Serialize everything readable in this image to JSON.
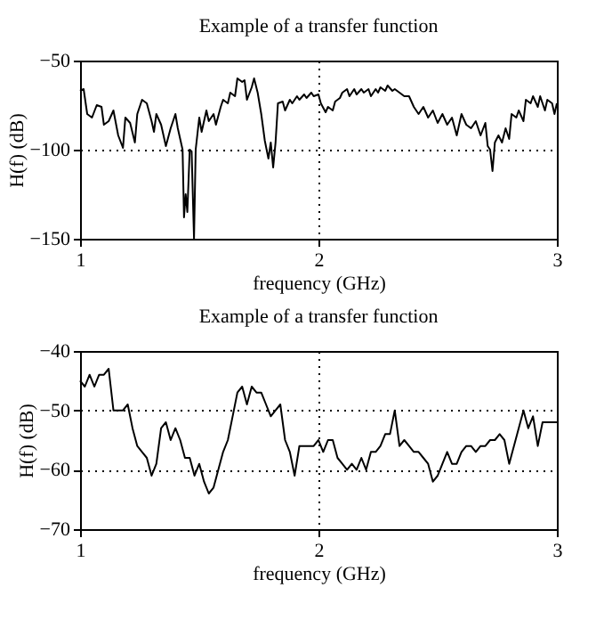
{
  "chart_data": [
    {
      "type": "line",
      "title": "Example of a transfer function",
      "xlabel": "frequency (GHz)",
      "ylabel": "H(f) (dB)",
      "color": "#000000",
      "xlim": [
        1,
        3
      ],
      "xticks": [
        1,
        2,
        3
      ],
      "ylim": [
        -150,
        -50
      ],
      "yticks": [
        -150,
        -100,
        -50
      ],
      "grid": true,
      "line_style": "solid",
      "marker": "none",
      "x": [
        1.0,
        1.015,
        1.03,
        1.05,
        1.07,
        1.09,
        1.1,
        1.12,
        1.14,
        1.16,
        1.18,
        1.19,
        1.21,
        1.23,
        1.24,
        1.26,
        1.28,
        1.3,
        1.31,
        1.32,
        1.34,
        1.36,
        1.38,
        1.4,
        1.41,
        1.43,
        1.436,
        1.443,
        1.45,
        1.46,
        1.468,
        1.478,
        1.485,
        1.5,
        1.51,
        1.53,
        1.54,
        1.56,
        1.57,
        1.59,
        1.6,
        1.62,
        1.63,
        1.65,
        1.66,
        1.68,
        1.69,
        1.7,
        1.72,
        1.73,
        1.745,
        1.76,
        1.775,
        1.79,
        1.8,
        1.81,
        1.82,
        1.83,
        1.85,
        1.86,
        1.88,
        1.89,
        1.91,
        1.92,
        1.94,
        1.95,
        1.97,
        1.98,
        2.0,
        2.01,
        2.03,
        2.04,
        2.06,
        2.07,
        2.09,
        2.1,
        2.12,
        2.13,
        2.15,
        2.16,
        2.18,
        2.19,
        2.21,
        2.22,
        2.24,
        2.25,
        2.26,
        2.28,
        2.29,
        2.31,
        2.32,
        2.34,
        2.36,
        2.38,
        2.4,
        2.42,
        2.44,
        2.46,
        2.48,
        2.5,
        2.52,
        2.54,
        2.56,
        2.58,
        2.6,
        2.62,
        2.64,
        2.66,
        2.68,
        2.7,
        2.71,
        2.72,
        2.73,
        2.74,
        2.755,
        2.77,
        2.785,
        2.8,
        2.81,
        2.83,
        2.84,
        2.86,
        2.87,
        2.89,
        2.9,
        2.92,
        2.93,
        2.95,
        2.96,
        2.98,
        2.99,
        3.0
      ],
      "values": [
        -67,
        -66,
        -80,
        -82,
        -75,
        -76,
        -86,
        -84,
        -78,
        -92,
        -99,
        -82,
        -85,
        -96,
        -80,
        -72,
        -74,
        -84,
        -90,
        -80,
        -86,
        -98,
        -88,
        -80,
        -88,
        -100,
        -138,
        -125,
        -135,
        -100,
        -101,
        -150,
        -100,
        -82,
        -90,
        -78,
        -84,
        -80,
        -86,
        -76,
        -72,
        -74,
        -68,
        -70,
        -60,
        -62,
        -61,
        -72,
        -65,
        -60,
        -68,
        -80,
        -95,
        -105,
        -96,
        -110,
        -96,
        -74,
        -73,
        -78,
        -72,
        -74,
        -70,
        -72,
        -69,
        -71,
        -68,
        -70,
        -69,
        -74,
        -79,
        -76,
        -78,
        -73,
        -71,
        -68,
        -66,
        -70,
        -66,
        -69,
        -66,
        -68,
        -66,
        -70,
        -66,
        -68,
        -65,
        -67,
        -64,
        -67,
        -66,
        -68,
        -70,
        -70,
        -76,
        -80,
        -76,
        -82,
        -78,
        -85,
        -80,
        -86,
        -82,
        -92,
        -80,
        -86,
        -88,
        -84,
        -92,
        -85,
        -98,
        -100,
        -112,
        -96,
        -92,
        -96,
        -88,
        -94,
        -80,
        -82,
        -78,
        -84,
        -72,
        -74,
        -70,
        -76,
        -70,
        -78,
        -72,
        -74,
        -80,
        -74
      ]
    },
    {
      "type": "line",
      "title": "Example of a transfer function",
      "xlabel": "frequency (GHz)",
      "ylabel": "H(f) (dB)",
      "color": "#000000",
      "xlim": [
        1,
        3
      ],
      "xticks": [
        1,
        2,
        3
      ],
      "ylim": [
        -70,
        -40
      ],
      "yticks": [
        -70,
        -60,
        -50,
        -40
      ],
      "grid": true,
      "line_style": "solid",
      "marker": "none",
      "x": [
        1.0,
        1.02,
        1.04,
        1.06,
        1.08,
        1.1,
        1.12,
        1.14,
        1.16,
        1.18,
        1.2,
        1.22,
        1.24,
        1.26,
        1.28,
        1.3,
        1.32,
        1.34,
        1.36,
        1.38,
        1.4,
        1.42,
        1.44,
        1.46,
        1.48,
        1.5,
        1.52,
        1.54,
        1.56,
        1.58,
        1.6,
        1.62,
        1.64,
        1.66,
        1.68,
        1.7,
        1.72,
        1.74,
        1.76,
        1.78,
        1.8,
        1.82,
        1.84,
        1.86,
        1.88,
        1.9,
        1.92,
        1.94,
        1.96,
        1.98,
        2.0,
        2.02,
        2.04,
        2.06,
        2.08,
        2.1,
        2.12,
        2.14,
        2.16,
        2.18,
        2.2,
        2.22,
        2.24,
        2.26,
        2.28,
        2.3,
        2.32,
        2.34,
        2.36,
        2.38,
        2.4,
        2.42,
        2.44,
        2.46,
        2.48,
        2.5,
        2.52,
        2.54,
        2.56,
        2.58,
        2.6,
        2.62,
        2.64,
        2.66,
        2.68,
        2.7,
        2.72,
        2.74,
        2.76,
        2.78,
        2.8,
        2.82,
        2.84,
        2.86,
        2.88,
        2.9,
        2.92,
        2.94,
        2.96,
        2.98,
        3.0
      ],
      "values": [
        -45,
        -46,
        -44,
        -46,
        -44,
        -44,
        -43,
        -50,
        -50,
        -50,
        -49,
        -53,
        -56,
        -57,
        -58,
        -61,
        -59,
        -53,
        -52,
        -55,
        -53,
        -55,
        -58,
        -58,
        -61,
        -59,
        -62,
        -64,
        -63,
        -60,
        -57,
        -55,
        -51,
        -47,
        -46,
        -49,
        -46,
        -47,
        -47,
        -49,
        -51,
        -50,
        -49,
        -55,
        -57,
        -61,
        -56,
        -56,
        -56,
        -56,
        -55,
        -57,
        -55,
        -55,
        -58,
        -59,
        -60,
        -59,
        -60,
        -58,
        -60,
        -57,
        -57,
        -56,
        -54,
        -54,
        -50,
        -56,
        -55,
        -56,
        -57,
        -57,
        -58,
        -59,
        -62,
        -61,
        -59,
        -57,
        -59,
        -59,
        -57,
        -56,
        -56,
        -57,
        -56,
        -56,
        -55,
        -55,
        -54,
        -55,
        -59,
        -56,
        -53,
        -50,
        -53,
        -51,
        -56,
        -52,
        -52,
        -52,
        -52
      ]
    }
  ]
}
